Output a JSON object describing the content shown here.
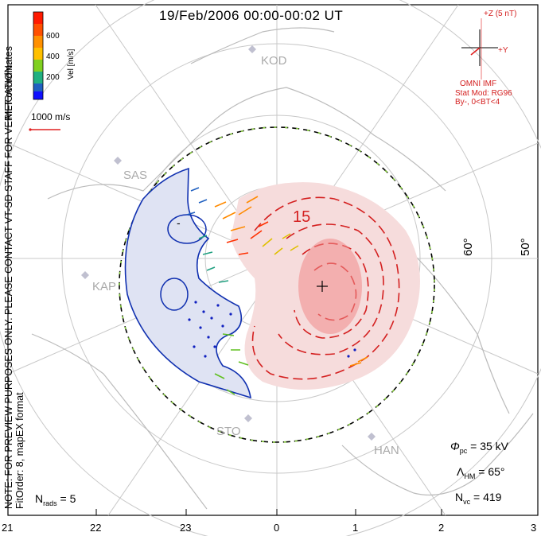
{
  "header": {
    "title": "19/Feb/2006 00:00-00:02 UT"
  },
  "colorbar": {
    "unit_label": "Vel [m/s]",
    "ticks": [
      "600",
      "400",
      "200"
    ],
    "colors": [
      "#ff1a00",
      "#ff7a00",
      "#ffc000",
      "#80d020",
      "#20b080",
      "#2060c0",
      "#1010ff"
    ]
  },
  "side_text": {
    "coords": "MLT coordinates",
    "notice": "NOTE: FOR PREVIEW PURPOSES ONLY. PLEASE CONTACT VT-SD STAFF FOR VERIFICATION.",
    "fit": "FitOrder: 8, mapEX format"
  },
  "scale": {
    "label": "1000 m/s"
  },
  "imf": {
    "z_label": "+Z (5 nT)",
    "y_label": "+Y",
    "source": "OMNI IMF",
    "model": "Stat Mod: RG96",
    "condition": "By-, 0<BT<4"
  },
  "stations": [
    "KOD",
    "SAS",
    "KAP",
    "STO",
    "HAN"
  ],
  "contour_labels": {
    "neg": "-",
    "pos": "15"
  },
  "lat_labels": [
    "60°",
    "50°"
  ],
  "stats": {
    "phi_pc": "= 35 kV",
    "lambda_hm": "= 65°",
    "n_vc": "= 419",
    "n_rads": "= 5"
  },
  "mlt_ticks": [
    "21",
    "22",
    "23",
    "0",
    "1",
    "2",
    "3"
  ]
}
